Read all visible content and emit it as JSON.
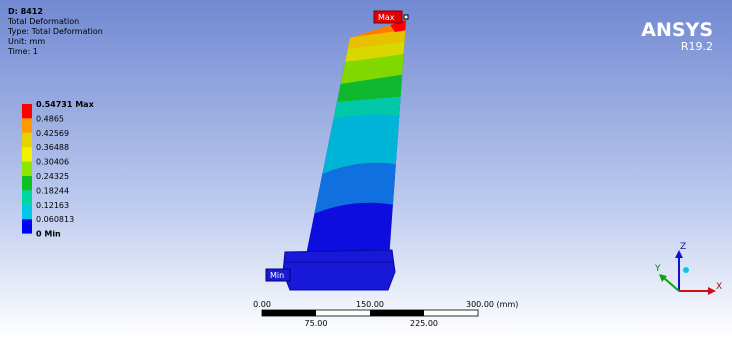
{
  "info": {
    "title": "D: 8412",
    "lines": [
      "Total Deformation",
      "Type: Total Deformation",
      "Unit: mm",
      "Time: 1"
    ]
  },
  "legend": {
    "labels": [
      "0.54731 Max",
      "0.4865",
      "0.42569",
      "0.36488",
      "0.30406",
      "0.24325",
      "0.18244",
      "0.12163",
      "0.060813",
      "0 Min"
    ]
  },
  "probes": {
    "max": "Max",
    "min": "Min"
  },
  "logo": {
    "name": "ANSYS",
    "version": "R19.2"
  },
  "scale_bar": {
    "top": [
      "0.00",
      "150.00",
      "300.00 (mm)"
    ],
    "bottom": [
      "75.00",
      "225.00"
    ]
  },
  "triad": {
    "x": "X",
    "y": "Y",
    "z": "Z"
  }
}
